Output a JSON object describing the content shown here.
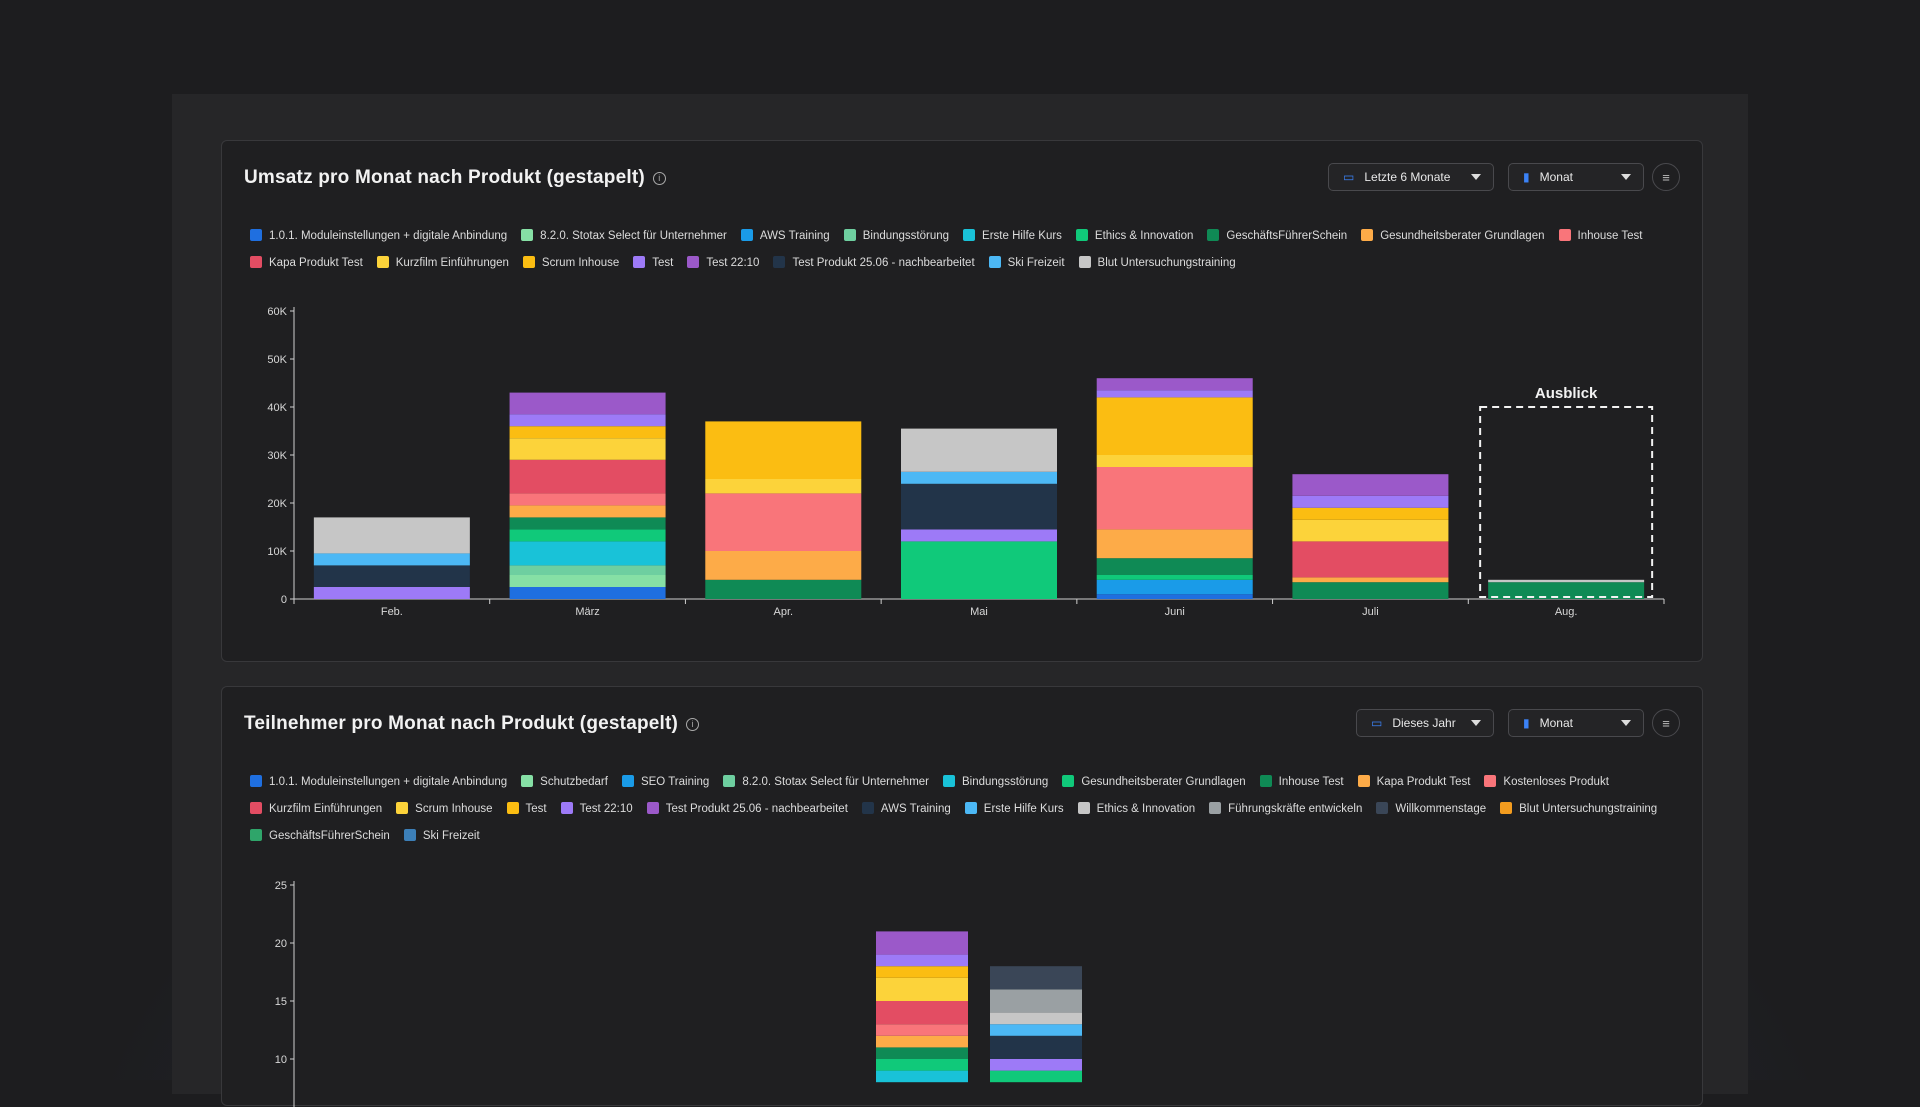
{
  "chart1": {
    "title": "Umsatz pro Monat nach Produkt (gestapelt)",
    "range_label": "Letzte 6 Monate",
    "interval_label": "Monat",
    "outlook_label": "Ausblick",
    "legend": [
      {
        "name": "1.0.1. Moduleinstellungen + digitale Anbindung",
        "color": "#1f6fe0"
      },
      {
        "name": "8.2.0. Stotax Select für Unternehmer",
        "color": "#86e0a5"
      },
      {
        "name": "AWS Training",
        "color": "#1a9be8"
      },
      {
        "name": "Bindungsstörung",
        "color": "#6ecfa0"
      },
      {
        "name": "Erste Hilfe Kurs",
        "color": "#19c2d8"
      },
      {
        "name": "Ethics & Innovation",
        "color": "#10c97a"
      },
      {
        "name": "GeschäftsFührerSchein",
        "color": "#0f8a55"
      },
      {
        "name": "Gesundheitsberater Grundlagen",
        "color": "#fdab48"
      },
      {
        "name": "Inhouse Test",
        "color": "#f9757a"
      },
      {
        "name": "Kapa Produkt Test",
        "color": "#e34d63"
      },
      {
        "name": "Kurzfilm Einführungen",
        "color": "#fcd33a"
      },
      {
        "name": "Scrum Inhouse",
        "color": "#fbbd12"
      },
      {
        "name": "Test",
        "color": "#9d7af7"
      },
      {
        "name": "Test 22:10",
        "color": "#9b59c9"
      },
      {
        "name": "Test Produkt 25.06 - nachbearbeitet",
        "color": "#223449"
      },
      {
        "name": "Ski Freizeit",
        "color": "#4cb8f5"
      },
      {
        "name": "Blut Untersuchungstraining",
        "color": "#c6c6c6"
      }
    ],
    "chart_data": {
      "type": "bar",
      "stacked": true,
      "categories": [
        "Feb.",
        "März",
        "Apr.",
        "Mai",
        "Juni",
        "Juli",
        "Aug."
      ],
      "ylim": [
        0,
        60000
      ],
      "yticks": [
        0,
        10000,
        20000,
        30000,
        40000,
        50000,
        60000
      ],
      "ytick_labels": [
        "0",
        "10K",
        "20K",
        "30K",
        "40K",
        "50K",
        "60K"
      ],
      "outlook_category": "Aug.",
      "series": [
        {
          "name": "1.0.1. Moduleinstellungen + digitale Anbindung",
          "color": "#1f6fe0",
          "values": [
            0,
            2500,
            0,
            0,
            1000,
            0,
            0
          ]
        },
        {
          "name": "8.2.0. Stotax Select für Unternehmer",
          "color": "#86e0a5",
          "values": [
            0,
            2500,
            0,
            0,
            0,
            0,
            0
          ]
        },
        {
          "name": "AWS Training",
          "color": "#1a9be8",
          "values": [
            0,
            0,
            0,
            0,
            3000,
            0,
            0
          ]
        },
        {
          "name": "Bindungsstörung",
          "color": "#6ecfa0",
          "values": [
            0,
            2000,
            0,
            0,
            0,
            0,
            0
          ]
        },
        {
          "name": "Erste Hilfe Kurs",
          "color": "#19c2d8",
          "values": [
            0,
            5000,
            0,
            0,
            0,
            0,
            0
          ]
        },
        {
          "name": "Ethics & Innovation",
          "color": "#10c97a",
          "values": [
            0,
            2500,
            0,
            12000,
            1000,
            0,
            0
          ]
        },
        {
          "name": "GeschäftsFührerSchein",
          "color": "#0f8a55",
          "values": [
            0,
            2500,
            4000,
            0,
            3500,
            3500,
            3500
          ]
        },
        {
          "name": "Gesundheitsberater Grundlagen",
          "color": "#fdab48",
          "values": [
            0,
            2500,
            6000,
            0,
            6000,
            1000,
            0
          ]
        },
        {
          "name": "Inhouse Test",
          "color": "#f9757a",
          "values": [
            0,
            2500,
            12000,
            0,
            13000,
            0,
            0
          ]
        },
        {
          "name": "Kapa Produkt Test",
          "color": "#e34d63",
          "values": [
            0,
            7000,
            0,
            0,
            0,
            7500,
            0
          ]
        },
        {
          "name": "Kurzfilm Einführungen",
          "color": "#fcd33a",
          "values": [
            0,
            4500,
            3000,
            0,
            2500,
            4500,
            0
          ]
        },
        {
          "name": "Scrum Inhouse",
          "color": "#fbbd12",
          "values": [
            0,
            2500,
            12000,
            0,
            12000,
            2500,
            0
          ]
        },
        {
          "name": "Test",
          "color": "#9d7af7",
          "values": [
            2500,
            2500,
            0,
            2500,
            1500,
            2500,
            0
          ]
        },
        {
          "name": "Test 22:10",
          "color": "#9b59c9",
          "values": [
            0,
            4500,
            0,
            0,
            2500,
            4500,
            0
          ]
        },
        {
          "name": "Test Produkt 25.06 - nachbearbeitet",
          "color": "#223449",
          "values": [
            4500,
            0,
            0,
            9500,
            0,
            0,
            0
          ]
        },
        {
          "name": "Ski Freizeit",
          "color": "#4cb8f5",
          "values": [
            2500,
            0,
            0,
            2500,
            0,
            0,
            0
          ]
        },
        {
          "name": "Blut Untersuchungstraining",
          "color": "#c6c6c6",
          "values": [
            7500,
            0,
            0,
            9000,
            0,
            0,
            500
          ]
        }
      ]
    }
  },
  "chart2": {
    "title": "Teilnehmer pro Monat nach Produkt (gestapelt)",
    "range_label": "Dieses Jahr",
    "interval_label": "Monat",
    "legend": [
      {
        "name": "1.0.1. Moduleinstellungen + digitale Anbindung",
        "color": "#1f6fe0"
      },
      {
        "name": "Schutzbedarf",
        "color": "#86e0a5"
      },
      {
        "name": "SEO Training",
        "color": "#1a9be8"
      },
      {
        "name": "8.2.0. Stotax Select für Unternehmer",
        "color": "#6ecfa0"
      },
      {
        "name": "Bindungsstörung",
        "color": "#19c2d8"
      },
      {
        "name": "Gesundheitsberater Grundlagen",
        "color": "#10c97a"
      },
      {
        "name": "Inhouse Test",
        "color": "#0f8a55"
      },
      {
        "name": "Kapa Produkt Test",
        "color": "#fdab48"
      },
      {
        "name": "Kostenloses Produkt",
        "color": "#f9757a"
      },
      {
        "name": "Kurzfilm Einführungen",
        "color": "#e34d63"
      },
      {
        "name": "Scrum Inhouse",
        "color": "#fcd33a"
      },
      {
        "name": "Test",
        "color": "#fbbd12"
      },
      {
        "name": "Test 22:10",
        "color": "#9d7af7"
      },
      {
        "name": "Test Produkt 25.06 - nachbearbeitet",
        "color": "#9b59c9"
      },
      {
        "name": "AWS Training",
        "color": "#223449"
      },
      {
        "name": "Erste Hilfe Kurs",
        "color": "#4cb8f5"
      },
      {
        "name": "Ethics & Innovation",
        "color": "#c6c6c6"
      },
      {
        "name": "Führungskräfte entwickeln",
        "color": "#9aa0a3"
      },
      {
        "name": "Willkommenstage",
        "color": "#3a4657"
      },
      {
        "name": "Blut Untersuchungstraining",
        "color": "#f39c1f"
      },
      {
        "name": "GeschäftsFührerSchein",
        "color": "#2fa56a"
      },
      {
        "name": "Ski Freizeit",
        "color": "#3c7fb8"
      }
    ],
    "chart_data": {
      "type": "bar",
      "stacked": true,
      "ylim": [
        0,
        25
      ],
      "yticks": [
        10,
        15,
        20,
        25
      ],
      "ytick_labels": [
        "10",
        "15",
        "20",
        "25"
      ],
      "bars": [
        {
          "segments": [
            {
              "color": "#19c2d8",
              "value": 1
            },
            {
              "color": "#10c97a",
              "value": 1
            },
            {
              "color": "#0f8a55",
              "value": 1
            },
            {
              "color": "#fdab48",
              "value": 1
            },
            {
              "color": "#f9757a",
              "value": 1
            },
            {
              "color": "#e34d63",
              "value": 2
            },
            {
              "color": "#fcd33a",
              "value": 2
            },
            {
              "color": "#fbbd12",
              "value": 1
            },
            {
              "color": "#9d7af7",
              "value": 1
            },
            {
              "color": "#9b59c9",
              "value": 2
            }
          ]
        },
        {
          "segments": [
            {
              "color": "#10c97a",
              "value": 1
            },
            {
              "color": "#9d7af7",
              "value": 1
            },
            {
              "color": "#223449",
              "value": 2
            },
            {
              "color": "#4cb8f5",
              "value": 1
            },
            {
              "color": "#c6c6c6",
              "value": 1
            },
            {
              "color": "#9aa0a3",
              "value": 2
            },
            {
              "color": "#3a4657",
              "value": 2
            }
          ]
        }
      ]
    }
  }
}
